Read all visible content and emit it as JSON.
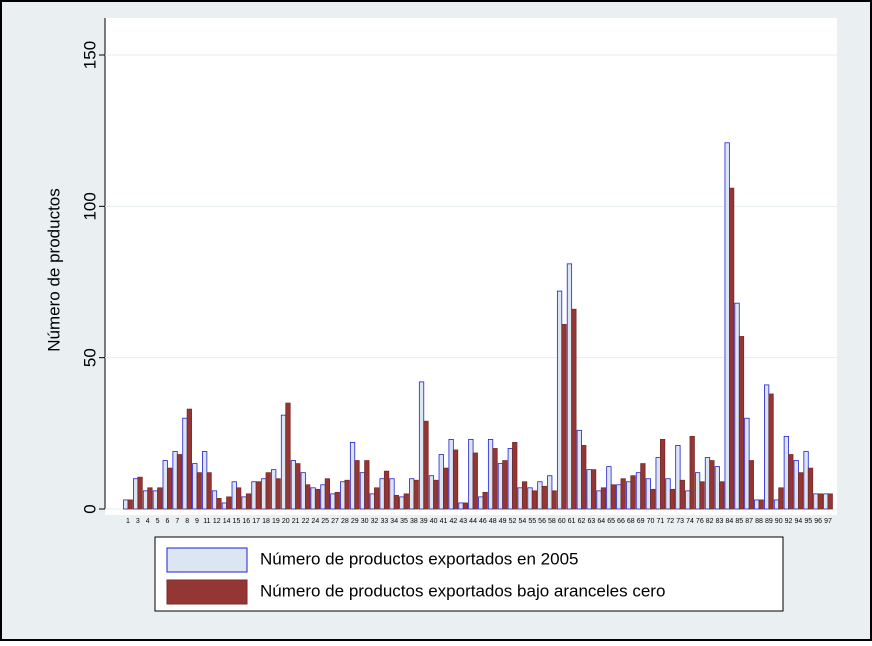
{
  "chart_data": {
    "type": "bar",
    "y_label": "Número de productos",
    "categories": [
      "1",
      "3",
      "4",
      "5",
      "6",
      "7",
      "8",
      "9",
      "11",
      "12",
      "14",
      "15",
      "16",
      "17",
      "18",
      "19",
      "20",
      "21",
      "22",
      "24",
      "25",
      "27",
      "28",
      "29",
      "30",
      "32",
      "33",
      "34",
      "35",
      "38",
      "39",
      "40",
      "41",
      "42",
      "43",
      "44",
      "46",
      "48",
      "49",
      "52",
      "54",
      "55",
      "56",
      "58",
      "60",
      "61",
      "62",
      "63",
      "64",
      "65",
      "66",
      "68",
      "69",
      "70",
      "71",
      "72",
      "73",
      "74",
      "76",
      "82",
      "83",
      "84",
      "85",
      "87",
      "88",
      "89",
      "90",
      "92",
      "94",
      "95",
      "96",
      "97"
    ],
    "series": [
      {
        "name": "Número de productos exportados en 2005",
        "color": "#dce6f2",
        "edge": "#2020d0",
        "values": [
          3,
          10,
          6,
          6,
          16,
          19,
          30,
          15,
          19,
          6,
          2,
          9,
          4,
          9,
          10,
          13,
          31,
          16,
          12,
          7,
          8,
          5,
          9,
          22,
          12,
          5,
          10,
          10,
          4,
          10,
          42,
          11,
          18,
          23,
          2,
          23,
          4,
          23,
          15,
          20,
          7,
          7,
          9,
          11,
          72,
          81,
          26,
          13,
          6,
          14,
          8,
          9,
          12,
          10,
          17,
          10,
          21,
          6,
          12,
          17,
          14,
          121,
          68,
          30,
          3,
          41,
          3,
          24,
          16,
          19,
          5,
          5
        ]
      },
      {
        "name": "Número de productos exportados bajo aranceles cero",
        "color": "#943634",
        "edge": "#7a2a28",
        "values": [
          3,
          10.5,
          7,
          7,
          13.5,
          18,
          33,
          12,
          12,
          3.5,
          4,
          7,
          5,
          9,
          12,
          10,
          35,
          15,
          8,
          6.5,
          10,
          5.5,
          9.5,
          16,
          16,
          7,
          12.5,
          4.5,
          5,
          9.5,
          29,
          9.5,
          13.5,
          19.5,
          2,
          18.5,
          5.5,
          20,
          16,
          22,
          9,
          6,
          7.5,
          6,
          61,
          66,
          21,
          13,
          7,
          8,
          10,
          11,
          15,
          6.5,
          23,
          6.5,
          9.5,
          24,
          9,
          16,
          9,
          106,
          57,
          16,
          3,
          38,
          7,
          18,
          12,
          13.5,
          5,
          5
        ]
      }
    ],
    "ylim": [
      0,
      150
    ],
    "yticks": [
      0,
      50,
      100,
      150
    ],
    "grid": true
  }
}
